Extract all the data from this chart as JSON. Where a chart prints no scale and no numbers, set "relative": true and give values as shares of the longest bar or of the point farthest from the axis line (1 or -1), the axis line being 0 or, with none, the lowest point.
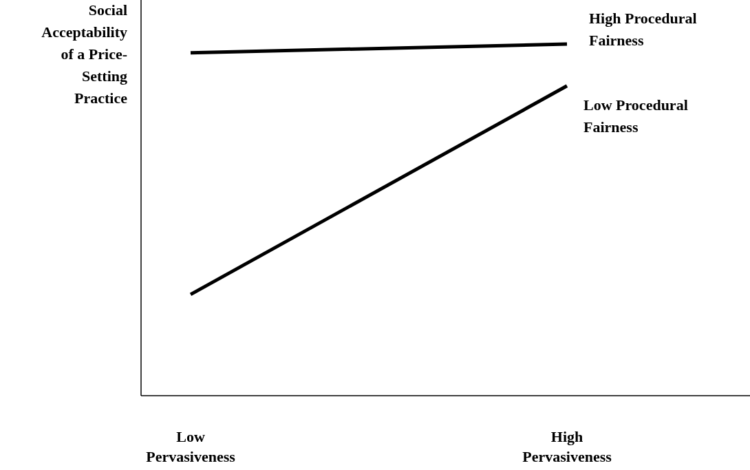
{
  "chart_data": {
    "type": "line",
    "relative": true,
    "ylabel": "Social Acceptability of a Price-Setting Practice",
    "categories": [
      "Low Pervasiveness",
      "High Pervasiveness"
    ],
    "series": [
      {
        "name": "High Procedural Fairness",
        "color": "#000000",
        "values": [
          0.975,
          1.0
        ]
      },
      {
        "name": "Low Procedural Fairness",
        "color": "#000000",
        "values": [
          0.288,
          0.881
        ]
      }
    ],
    "legend": false,
    "grid": false,
    "marker": "none",
    "line_style": "solid"
  }
}
